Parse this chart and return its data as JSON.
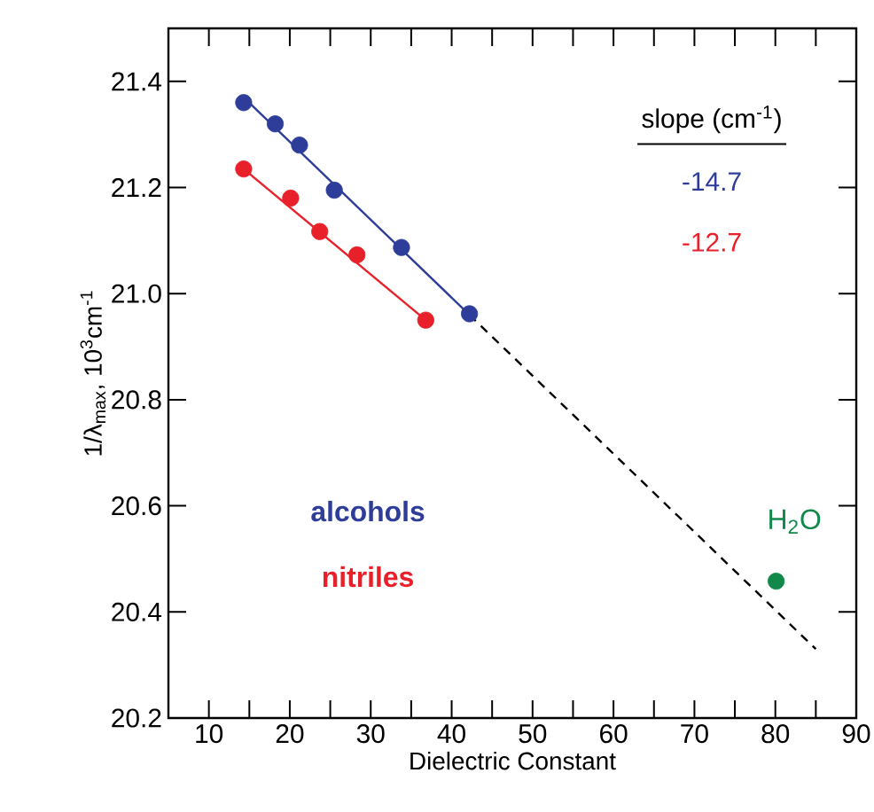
{
  "chart_data": {
    "type": "scatter",
    "xlabel": "Dielectric Constant",
    "ylabel": "1/λ$_{max}$, 10$^{3}$cm$^{-1}$",
    "xlim": [
      5,
      90
    ],
    "ylim": [
      20.2,
      21.5
    ],
    "xticks": [
      10,
      20,
      30,
      40,
      50,
      60,
      70,
      80,
      90
    ],
    "yticks": [
      {
        "value": 20.2,
        "label": "20.2"
      },
      {
        "value": 20.4,
        "label": "20.4"
      },
      {
        "value": 20.6,
        "label": "20.6"
      },
      {
        "value": 20.8,
        "label": "20.8"
      },
      {
        "value": 21.0,
        "label": "21.0"
      },
      {
        "value": 21.2,
        "label": "21.2"
      },
      {
        "value": 21.4,
        "label": "21.4"
      }
    ],
    "grid": false,
    "series": [
      {
        "type": "line",
        "color": "#2e3d9a",
        "x": [
          14.3,
          42.2
        ],
        "values": [
          21.37,
          20.96
        ],
        "marker": "none",
        "line_style": "solid"
      },
      {
        "type": "line",
        "color": "#000000",
        "x": [
          42.2,
          85
        ],
        "values": [
          20.96,
          20.33
        ],
        "marker": "none",
        "line_style": "dashed"
      },
      {
        "type": "line",
        "color": "#e8202a",
        "x": [
          14.3,
          36.8
        ],
        "values": [
          21.235,
          20.95
        ],
        "marker": "none",
        "line_style": "solid"
      },
      {
        "name": "alcohols",
        "color": "#2e3d9a",
        "x": [
          14.3,
          18.2,
          21.2,
          25.5,
          33.8,
          42.2
        ],
        "values": [
          21.36,
          21.32,
          21.28,
          21.195,
          21.087,
          20.962
        ],
        "marker": "circle"
      },
      {
        "name": "nitriles",
        "color": "#e8202a",
        "x": [
          14.3,
          20.1,
          23.7,
          28.3,
          36.8
        ],
        "values": [
          21.235,
          21.18,
          21.117,
          21.073,
          20.95
        ],
        "marker": "circle"
      },
      {
        "name": "H$_{2}$O",
        "color": "#12884a",
        "x": [
          80.1
        ],
        "values": [
          20.458
        ],
        "marker": "circle"
      }
    ],
    "annotations": [
      "slope (cm$^{-1}$)",
      "-14.7",
      "-12.7"
    ]
  }
}
